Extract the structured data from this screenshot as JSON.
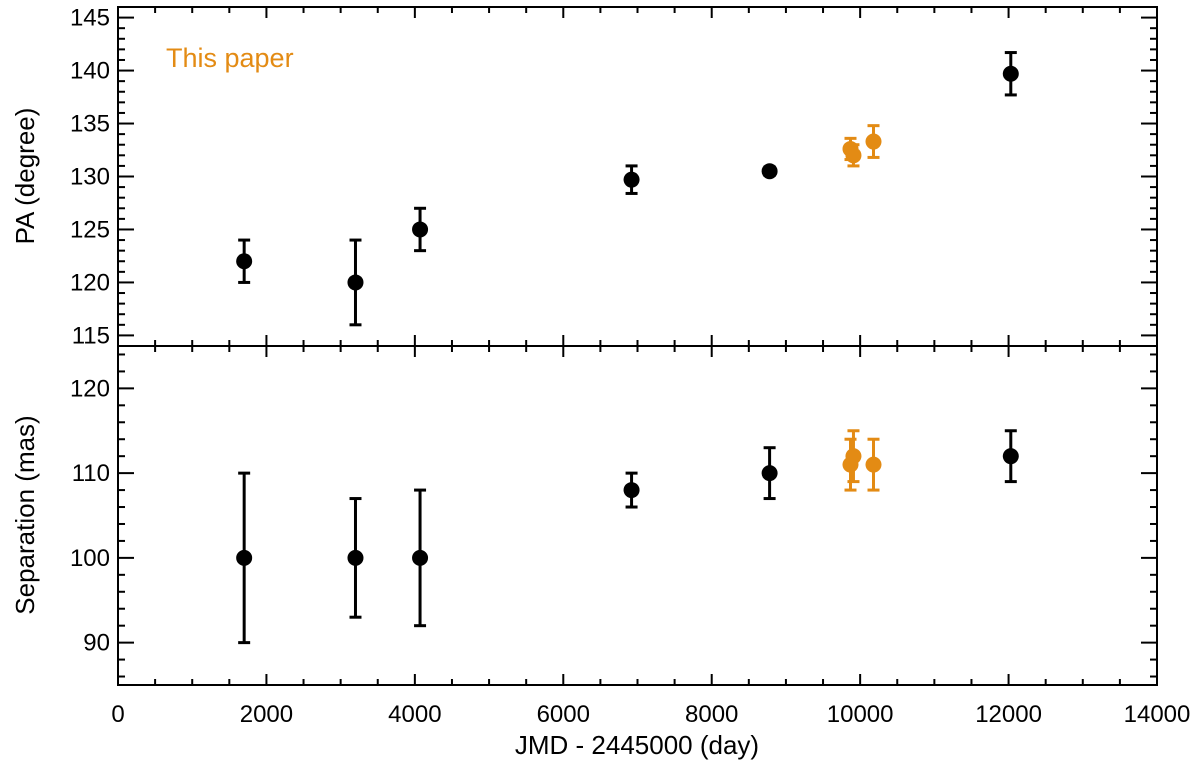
{
  "colors": {
    "black_series": "#000000",
    "this_paper": "#e38b14",
    "axes": "#000000"
  },
  "annotation": "This paper",
  "chart_data": [
    {
      "id": "pa_panel",
      "type": "scatter",
      "ylabel": "PA (degree)",
      "xlim": [
        0,
        14000
      ],
      "ylim": [
        114,
        146
      ],
      "yticks": [
        115,
        120,
        125,
        130,
        135,
        140,
        145
      ],
      "series": [
        {
          "color_key": "black_series",
          "points": [
            {
              "x": 1700,
              "y": 122,
              "err": 2
            },
            {
              "x": 3200,
              "y": 120,
              "err": 4
            },
            {
              "x": 4070,
              "y": 125,
              "err": 2
            },
            {
              "x": 6920,
              "y": 129.7,
              "err": 1.3
            },
            {
              "x": 8780,
              "y": 130.5,
              "err": 0.4
            },
            {
              "x": 12030,
              "y": 139.7,
              "err": 2
            }
          ]
        },
        {
          "name": "This paper",
          "color_key": "this_paper",
          "points": [
            {
              "x": 9870,
              "y": 132.6,
              "err": 1
            },
            {
              "x": 9910,
              "y": 132.0,
              "err": 1
            },
            {
              "x": 10180,
              "y": 133.3,
              "err": 1.5
            }
          ]
        }
      ]
    },
    {
      "id": "sep_panel",
      "type": "scatter",
      "ylabel": "Separation (mas)",
      "xlabel": "JMD - 2445000 (day)",
      "xlim": [
        0,
        14000
      ],
      "ylim": [
        85,
        125
      ],
      "xticks": [
        0,
        2000,
        4000,
        6000,
        8000,
        10000,
        12000,
        14000
      ],
      "yticks": [
        90,
        100,
        110,
        120
      ],
      "series": [
        {
          "color_key": "black_series",
          "points": [
            {
              "x": 1700,
              "y": 100,
              "err": 10
            },
            {
              "x": 3200,
              "y": 100,
              "err": 7
            },
            {
              "x": 4070,
              "y": 100,
              "err": 8
            },
            {
              "x": 6920,
              "y": 108,
              "err": 2
            },
            {
              "x": 8780,
              "y": 110,
              "err": 3
            },
            {
              "x": 12030,
              "y": 112,
              "err": 3
            }
          ]
        },
        {
          "name": "This paper",
          "color_key": "this_paper",
          "points": [
            {
              "x": 9870,
              "y": 111,
              "err": 3
            },
            {
              "x": 9910,
              "y": 112,
              "err": 3
            },
            {
              "x": 10180,
              "y": 111,
              "err": 3
            }
          ]
        }
      ]
    }
  ]
}
